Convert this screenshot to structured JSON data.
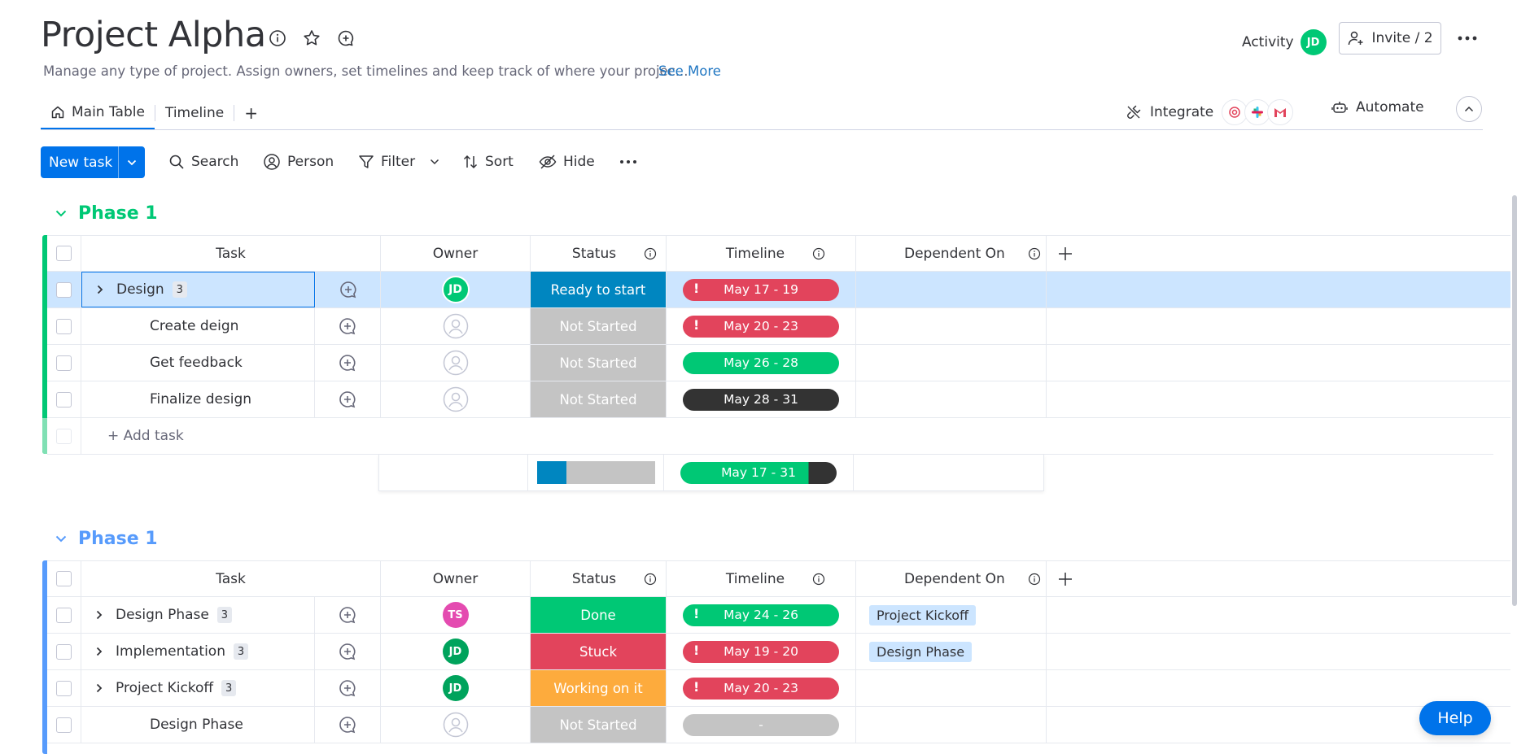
{
  "header": {
    "title": "Project Alpha",
    "description": "Manage any type of project. Assign owners, set timelines and keep track of where your projec...",
    "see_more": "See More",
    "activity_label": "Activity",
    "activity_avatar": "JD",
    "invite_label": "Invite / 2"
  },
  "tabs": [
    {
      "label": "Main Table",
      "active": true
    },
    {
      "label": "Timeline",
      "active": false
    }
  ],
  "tab_add": "+",
  "integrate_label": "Integrate",
  "automate_label": "Automate",
  "toolbar": {
    "new_task": "New task",
    "search": "Search",
    "person": "Person",
    "filter": "Filter",
    "sort": "Sort",
    "hide": "Hide"
  },
  "columns": {
    "task": "Task",
    "owner": "Owner",
    "status": "Status",
    "timeline": "Timeline",
    "dependent_on": "Dependent On"
  },
  "colors": {
    "green": "#00c875",
    "blue_status": "#0086c0",
    "gray": "#c4c4c4",
    "red": "#e2445c",
    "orange": "#fdab3d",
    "dark": "#333333",
    "group1": "#00c875",
    "group2": "#579bfc"
  },
  "groups": [
    {
      "title": "Phase 1",
      "add_task": "+ Add task",
      "rows": [
        {
          "task": "Design",
          "subitems": "3",
          "owner": "JD",
          "status": "Ready to start",
          "timeline": "May 17 - 19",
          "dependent_on": ""
        },
        {
          "task": "Create deign",
          "subitems": "",
          "owner": "",
          "status": "Not Started",
          "timeline": "May 20 - 23",
          "dependent_on": ""
        },
        {
          "task": "Get feedback",
          "subitems": "",
          "owner": "",
          "status": "Not Started",
          "timeline": "May 26 - 28",
          "dependent_on": ""
        },
        {
          "task": "Finalize design",
          "subitems": "",
          "owner": "",
          "status": "Not Started",
          "timeline": "May 28 - 31",
          "dependent_on": ""
        }
      ],
      "summary_timeline": "May 17 - 31",
      "summary_status_fraction": 0.25
    },
    {
      "title": "Phase 1",
      "rows": [
        {
          "task": "Design Phase",
          "subitems": "3",
          "owner": "TS",
          "status": "Done",
          "timeline": "May 24 - 26",
          "dependent_on": "Project Kickoff"
        },
        {
          "task": "Implementation",
          "subitems": "3",
          "owner": "JD",
          "status": "Stuck",
          "timeline": "May 19 - 20",
          "dependent_on": "Design Phase"
        },
        {
          "task": "Project Kickoff",
          "subitems": "3",
          "owner": "JD",
          "status": "Working on it",
          "timeline": "May 20 - 23",
          "dependent_on": ""
        },
        {
          "task": "Design Phase",
          "subitems": "",
          "owner": "",
          "status": "Not Started",
          "timeline": "-",
          "dependent_on": ""
        }
      ]
    }
  ],
  "help_label": "Help"
}
